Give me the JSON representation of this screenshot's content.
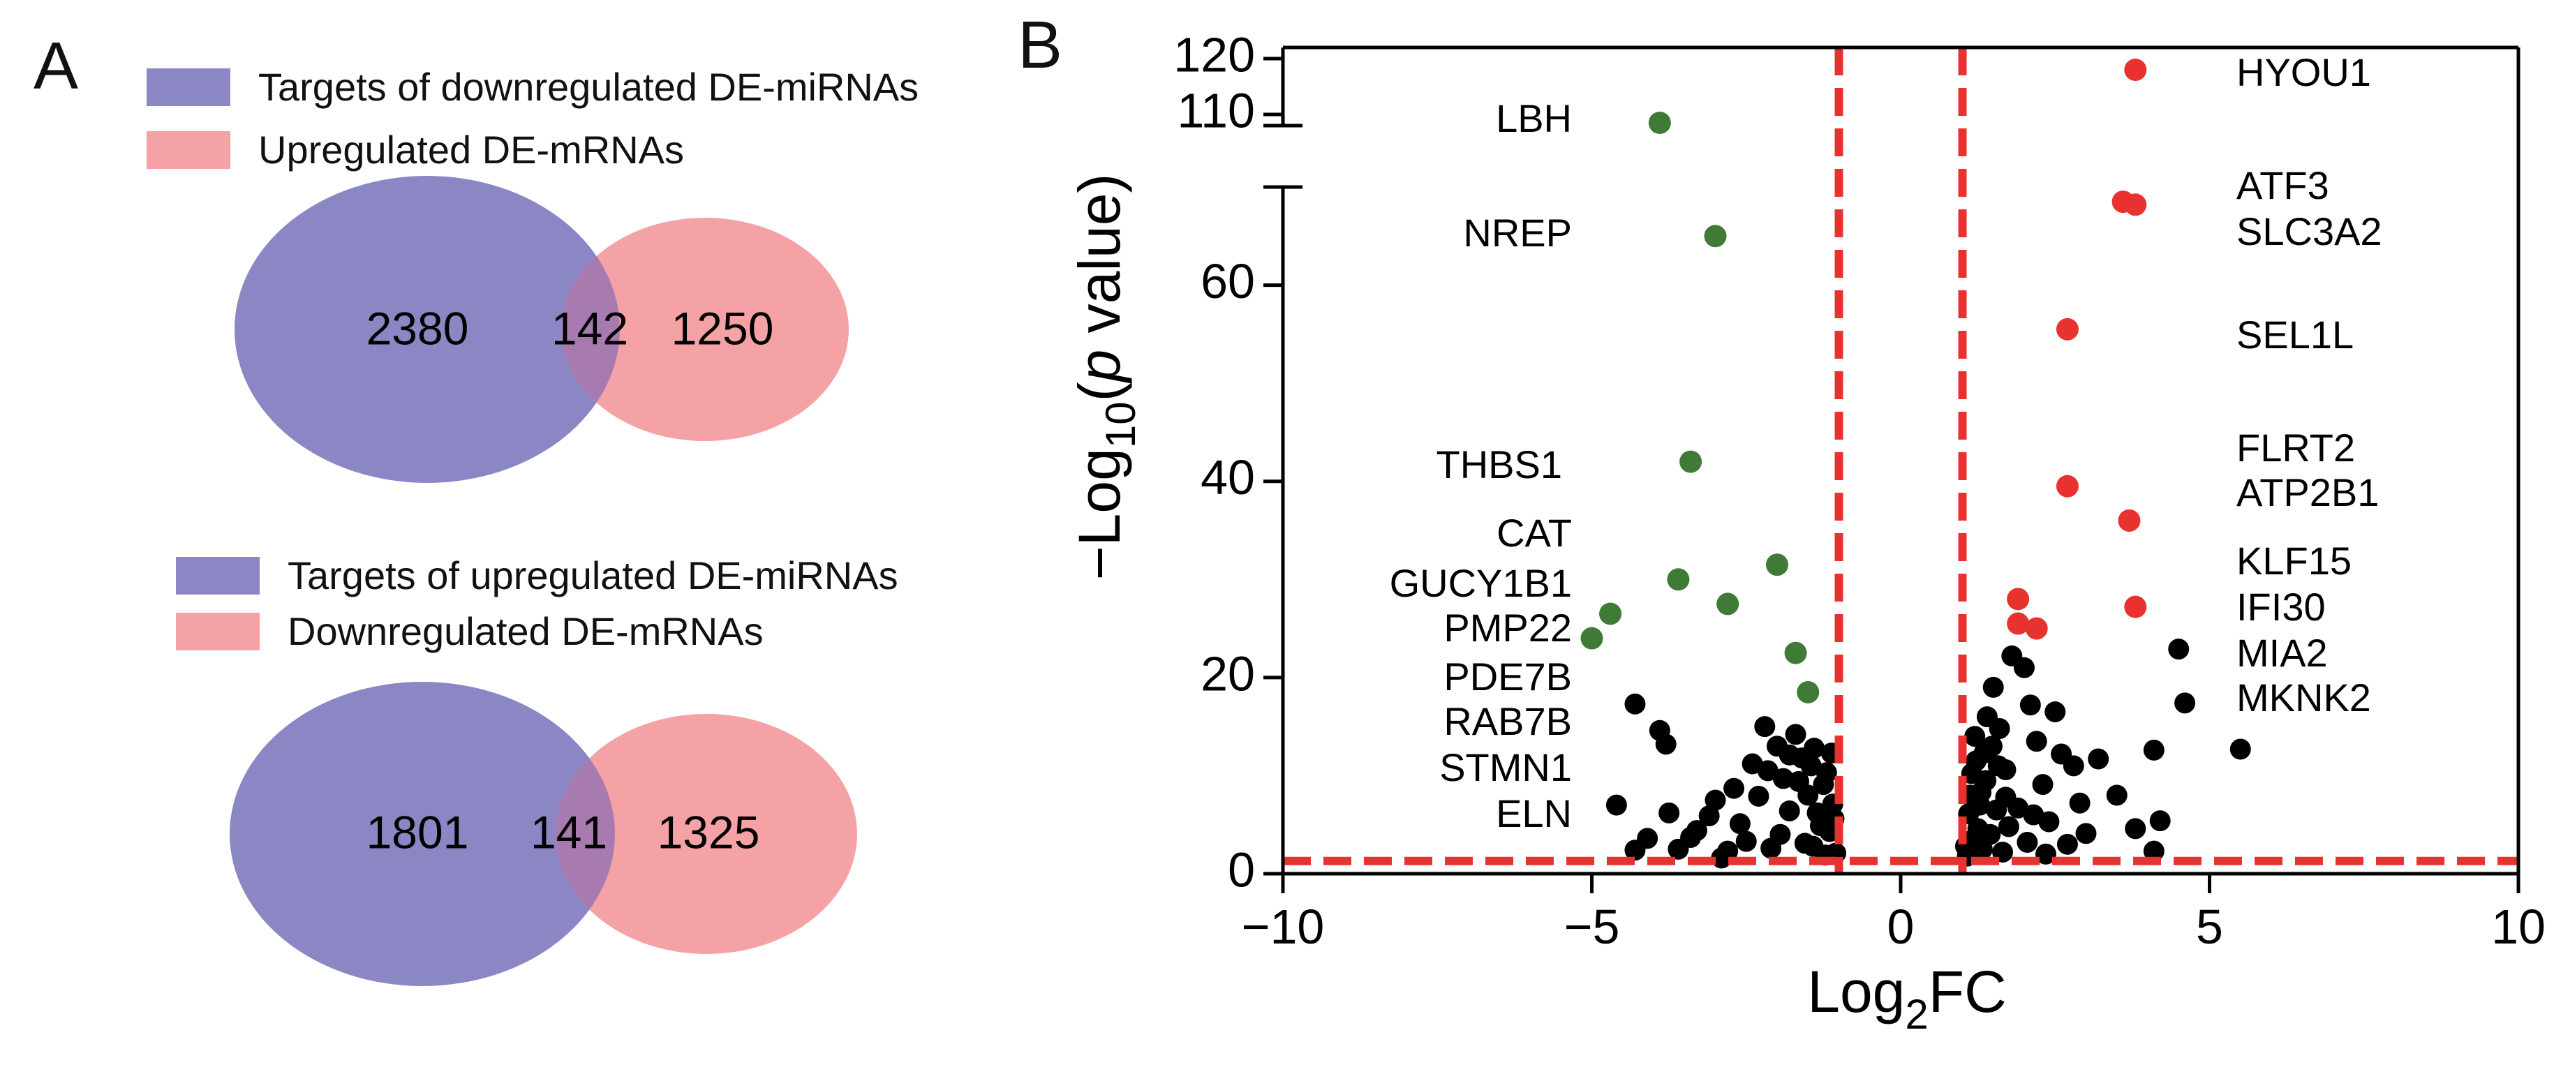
{
  "panels": {
    "a_label": "A",
    "b_label": "B"
  },
  "colors": {
    "purple": "#8a87c4",
    "pink": "#f4a2a6",
    "overlap": "#a87bb0",
    "down": "#3f7a36",
    "up": "#e8322f",
    "other": "#000000",
    "threshold": "#e8322f"
  },
  "chart_data": [
    {
      "type": "venn",
      "legend": [
        {
          "label": "Targets of downregulated DE-miRNAs",
          "color": "#8a87c4"
        },
        {
          "label": "Upregulated DE-mRNAs",
          "color": "#f4a2a6"
        }
      ],
      "sets": {
        "left_only": "2380",
        "intersection": "142",
        "right_only": "1250"
      }
    },
    {
      "type": "venn",
      "legend": [
        {
          "label": "Targets of upregulated DE-miRNAs",
          "color": "#8a87c4"
        },
        {
          "label": "Downregulated DE-mRNAs",
          "color": "#f4a2a6"
        }
      ],
      "sets": {
        "left_only": "1801",
        "intersection": "141",
        "right_only": "1325"
      }
    },
    {
      "type": "scatter",
      "xlabel_main": "Log",
      "xlabel_sub": "2",
      "xlabel_tail": "FC",
      "ylabel_main": "−Log",
      "ylabel_sub": "10",
      "ylabel_open": "(",
      "ylabel_italic": "p",
      "ylabel_tail": " value)",
      "xlim": [
        -10,
        10
      ],
      "xticks": [
        {
          "value": -10,
          "label": "−10"
        },
        {
          "value": -5,
          "label": "−5"
        },
        {
          "value": 0,
          "label": "0"
        },
        {
          "value": 5,
          "label": "5"
        },
        {
          "value": 10,
          "label": "10"
        }
      ],
      "ylim_lower": [
        0,
        70
      ],
      "ylim_upper": [
        108,
        122
      ],
      "yticks_lower": [
        {
          "value": 0,
          "label": "0"
        },
        {
          "value": 20,
          "label": "20"
        },
        {
          "value": 40,
          "label": "40"
        },
        {
          "value": 60,
          "label": "60"
        }
      ],
      "yticks_upper": [
        {
          "value": 110,
          "label": "110"
        },
        {
          "value": 120,
          "label": "120"
        }
      ],
      "thresholds": {
        "x": [
          -1,
          1
        ],
        "y": 1.3
      },
      "down_points": [
        {
          "x": -3.9,
          "y": 108.5
        },
        {
          "x": -3.0,
          "y": 65
        },
        {
          "x": -3.4,
          "y": 42
        },
        {
          "x": -2.0,
          "y": 31.5
        },
        {
          "x": -3.6,
          "y": 30
        },
        {
          "x": -2.8,
          "y": 27.5
        },
        {
          "x": -4.7,
          "y": 26.5
        },
        {
          "x": -5.0,
          "y": 24
        },
        {
          "x": -1.7,
          "y": 22.5
        },
        {
          "x": -1.5,
          "y": 18.5
        }
      ],
      "up_points": [
        {
          "x": 3.8,
          "y": 118
        },
        {
          "x": 3.6,
          "y": 68.5
        },
        {
          "x": 3.8,
          "y": 68.2
        },
        {
          "x": 2.7,
          "y": 55.5
        },
        {
          "x": 2.7,
          "y": 39.5
        },
        {
          "x": 3.7,
          "y": 36
        },
        {
          "x": 1.9,
          "y": 28
        },
        {
          "x": 3.8,
          "y": 27.2
        },
        {
          "x": 1.9,
          "y": 25.5
        },
        {
          "x": 2.2,
          "y": 25
        }
      ],
      "down_labels": [
        "LBH",
        "NREP",
        "THBS1",
        "CAT",
        "GUCY1B1",
        "PMP22",
        "PDE7B",
        "RAB7B",
        "STMN1",
        "ELN"
      ],
      "up_labels": [
        "HYOU1",
        "ATF3",
        "SLC3A2",
        "SEL1L",
        "FLRT2",
        "ATP2B1",
        "KLF15",
        "IFI30",
        "MIA2",
        "MKNK2"
      ],
      "other_points": [
        {
          "x": -4.3,
          "y": 17.3
        },
        {
          "x": -3.9,
          "y": 14.6
        },
        {
          "x": -3.8,
          "y": 13.2
        },
        {
          "x": -4.6,
          "y": 7.0
        },
        {
          "x": -4.1,
          "y": 3.6
        },
        {
          "x": -3.3,
          "y": 4.4
        },
        {
          "x": -3.6,
          "y": 2.5
        },
        {
          "x": -3.1,
          "y": 5.9
        },
        {
          "x": -2.9,
          "y": 1.6
        },
        {
          "x": -2.7,
          "y": 8.7
        },
        {
          "x": -2.5,
          "y": 3.3
        },
        {
          "x": -2.4,
          "y": 11.2
        },
        {
          "x": -2.2,
          "y": 15.0
        },
        {
          "x": -2.0,
          "y": 13.0
        },
        {
          "x": -1.9,
          "y": 9.7
        },
        {
          "x": -1.8,
          "y": 6.4
        },
        {
          "x": -1.7,
          "y": 14.2
        },
        {
          "x": -1.6,
          "y": 11.8
        },
        {
          "x": -1.5,
          "y": 8.0
        },
        {
          "x": -1.4,
          "y": 12.8
        },
        {
          "x": -1.3,
          "y": 4.9
        },
        {
          "x": -1.2,
          "y": 10.3
        },
        {
          "x": -1.1,
          "y": 7.1
        },
        {
          "x": -1.05,
          "y": 2.1
        },
        {
          "x": -1.35,
          "y": 6.2
        },
        {
          "x": -1.55,
          "y": 3.1
        },
        {
          "x": -1.25,
          "y": 9.1
        },
        {
          "x": -1.15,
          "y": 4.3
        },
        {
          "x": -2.1,
          "y": 2.6
        },
        {
          "x": -3.4,
          "y": 3.7
        },
        {
          "x": -3.0,
          "y": 7.5
        },
        {
          "x": -2.6,
          "y": 5.1
        },
        {
          "x": -2.3,
          "y": 7.9
        },
        {
          "x": -1.8,
          "y": 12.1
        },
        {
          "x": -1.65,
          "y": 9.4
        },
        {
          "x": -1.45,
          "y": 11.0
        },
        {
          "x": -1.12,
          "y": 12.3
        },
        {
          "x": -1.08,
          "y": 5.6
        },
        {
          "x": -1.22,
          "y": 1.9
        },
        {
          "x": -1.42,
          "y": 2.8
        },
        {
          "x": -1.95,
          "y": 4.0
        },
        {
          "x": -2.8,
          "y": 2.3
        },
        {
          "x": -3.75,
          "y": 6.2
        },
        {
          "x": -4.3,
          "y": 2.4
        },
        {
          "x": -2.15,
          "y": 10.5
        },
        {
          "x": 1.05,
          "y": 2.8
        },
        {
          "x": 1.1,
          "y": 6.1
        },
        {
          "x": 1.15,
          "y": 10.2
        },
        {
          "x": 1.2,
          "y": 14.0
        },
        {
          "x": 1.25,
          "y": 4.6
        },
        {
          "x": 1.3,
          "y": 8.3
        },
        {
          "x": 1.35,
          "y": 12.3
        },
        {
          "x": 1.4,
          "y": 16.0
        },
        {
          "x": 1.5,
          "y": 19.0
        },
        {
          "x": 1.6,
          "y": 14.8
        },
        {
          "x": 1.7,
          "y": 10.6
        },
        {
          "x": 1.8,
          "y": 22.2
        },
        {
          "x": 1.9,
          "y": 6.7
        },
        {
          "x": 2.0,
          "y": 21.0
        },
        {
          "x": 2.1,
          "y": 17.2
        },
        {
          "x": 2.2,
          "y": 13.5
        },
        {
          "x": 2.3,
          "y": 9.1
        },
        {
          "x": 2.4,
          "y": 5.3
        },
        {
          "x": 2.5,
          "y": 16.5
        },
        {
          "x": 2.6,
          "y": 12.2
        },
        {
          "x": 2.8,
          "y": 11.0
        },
        {
          "x": 3.0,
          "y": 4.1
        },
        {
          "x": 3.2,
          "y": 11.7
        },
        {
          "x": 3.5,
          "y": 8.0
        },
        {
          "x": 3.8,
          "y": 4.6
        },
        {
          "x": 4.1,
          "y": 12.6
        },
        {
          "x": 4.2,
          "y": 5.4
        },
        {
          "x": 4.1,
          "y": 2.3
        },
        {
          "x": 4.6,
          "y": 17.4
        },
        {
          "x": 4.5,
          "y": 22.9
        },
        {
          "x": 5.5,
          "y": 12.7
        },
        {
          "x": 1.08,
          "y": 1.8
        },
        {
          "x": 1.12,
          "y": 8.0
        },
        {
          "x": 1.18,
          "y": 3.5
        },
        {
          "x": 1.22,
          "y": 11.5
        },
        {
          "x": 1.28,
          "y": 7.0
        },
        {
          "x": 1.32,
          "y": 2.5
        },
        {
          "x": 1.45,
          "y": 4.0
        },
        {
          "x": 1.55,
          "y": 6.5
        },
        {
          "x": 1.65,
          "y": 2.2
        },
        {
          "x": 1.75,
          "y": 4.8
        },
        {
          "x": 2.05,
          "y": 3.2
        },
        {
          "x": 2.15,
          "y": 6.0
        },
        {
          "x": 2.35,
          "y": 2.0
        },
        {
          "x": 2.7,
          "y": 3.0
        },
        {
          "x": 2.9,
          "y": 7.2
        },
        {
          "x": 1.38,
          "y": 9.5
        },
        {
          "x": 1.48,
          "y": 13.0
        },
        {
          "x": 1.58,
          "y": 11.0
        },
        {
          "x": 1.7,
          "y": 7.8
        }
      ]
    }
  ]
}
